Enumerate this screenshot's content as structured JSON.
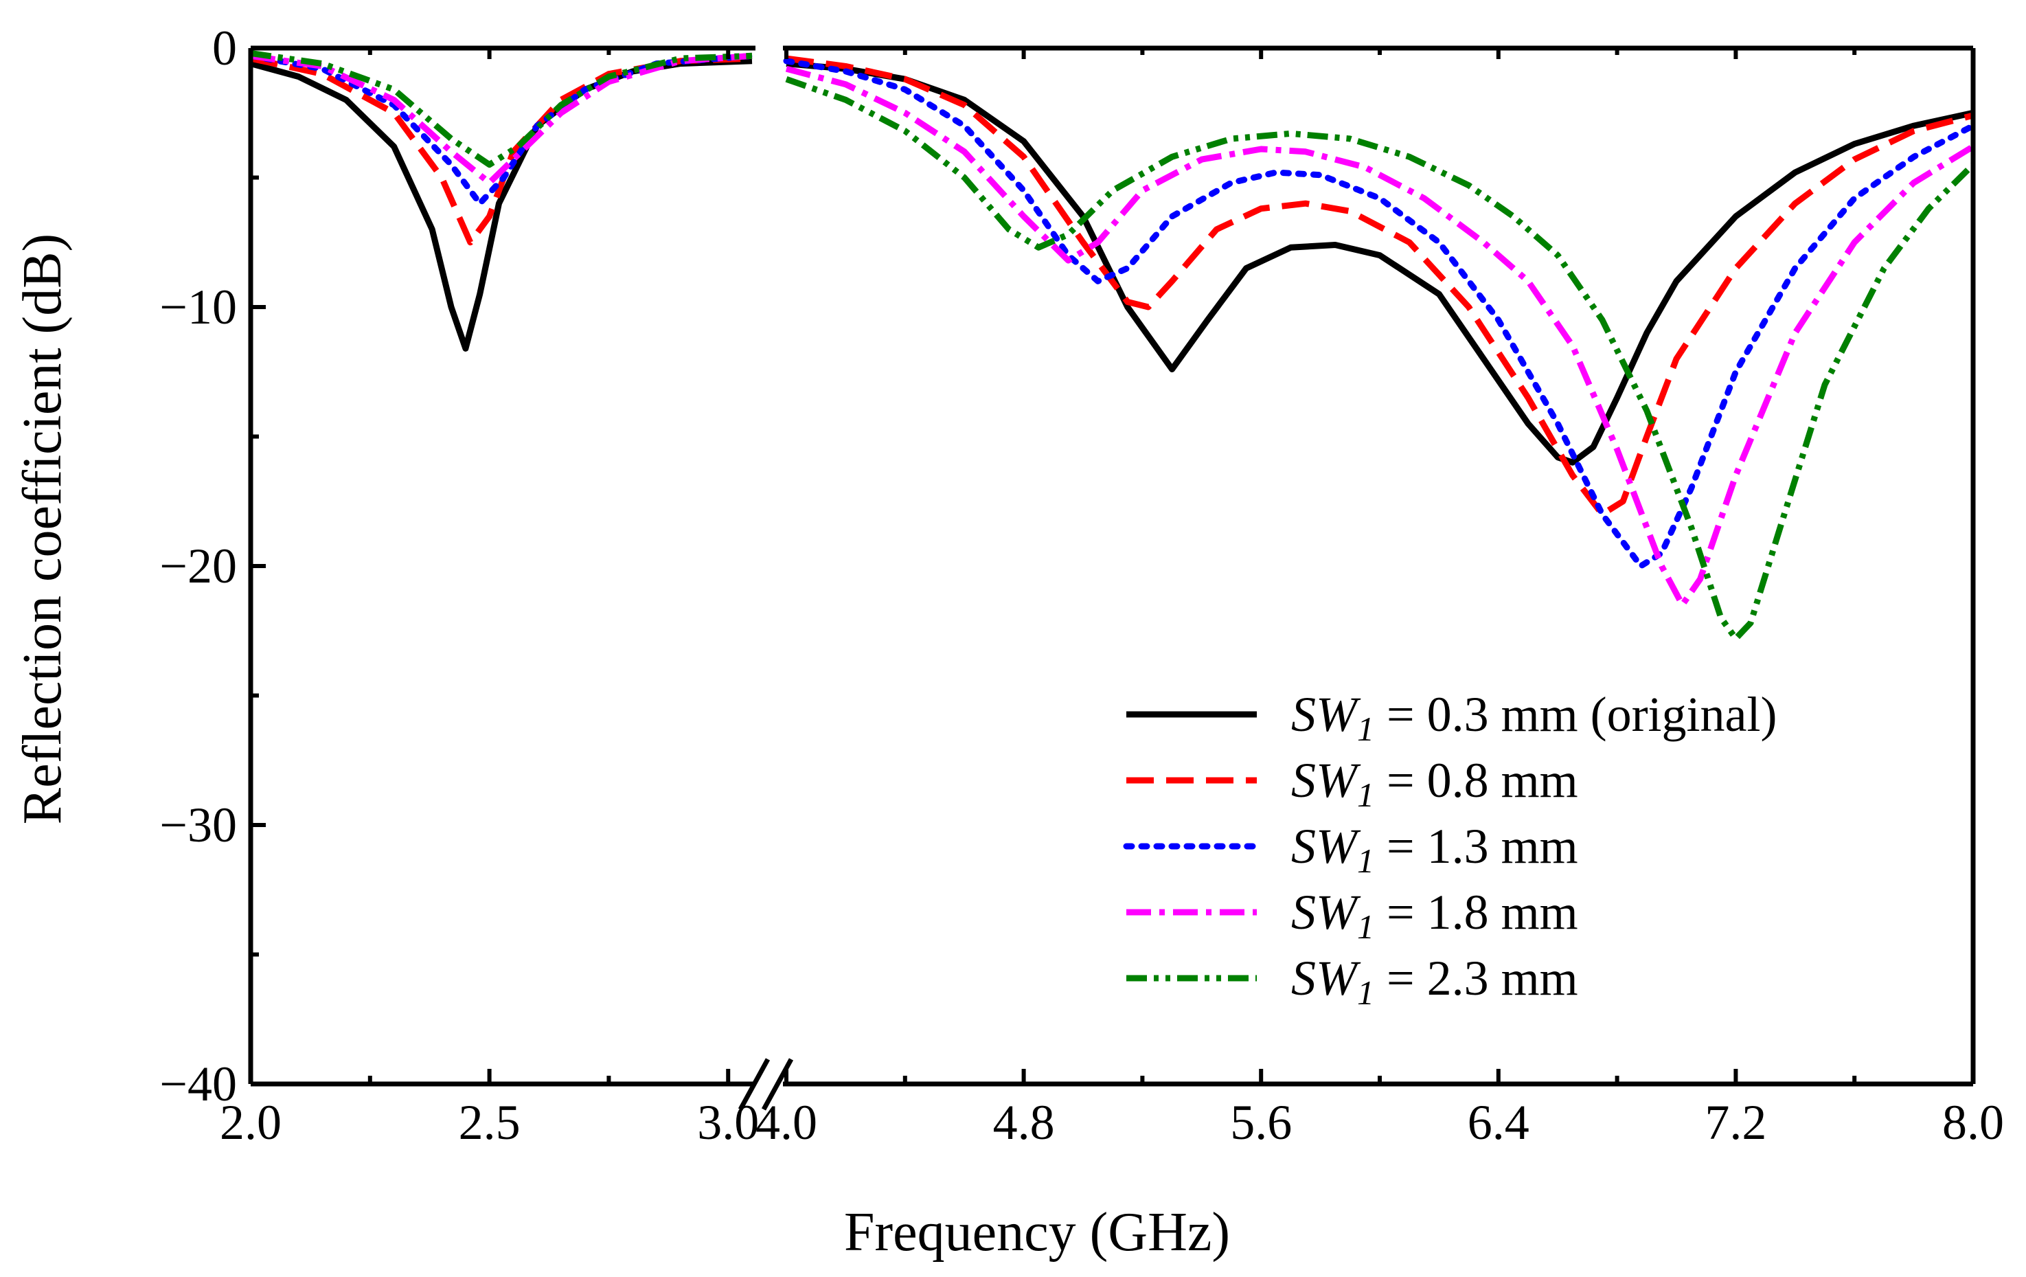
{
  "chart_data": {
    "type": "line",
    "title": "",
    "xlabel": "Frequency (GHz)",
    "ylabel": "Reflection coefficient (dB)",
    "ylim": [
      -40,
      0
    ],
    "yticks": [
      0,
      -10,
      -20,
      -30,
      -40
    ],
    "ytick_labels": [
      "0",
      "−10",
      "−20",
      "−30",
      "−40"
    ],
    "x_break": true,
    "x_segments": [
      {
        "range": [
          2.0,
          3.05
        ],
        "ticks": [
          2.0,
          2.5,
          3.0
        ],
        "tick_labels": [
          "2.0",
          "2.5",
          "3.0"
        ]
      },
      {
        "range": [
          4.0,
          8.0
        ],
        "ticks": [
          4.0,
          4.8,
          5.6,
          6.4,
          7.2,
          8.0
        ],
        "tick_labels": [
          "4.0",
          "4.8",
          "5.6",
          "6.4",
          "7.2",
          "8.0"
        ]
      }
    ],
    "legend_position": "bottom-right",
    "series": [
      {
        "name": "SW1 = 0.3 mm (original)",
        "legend": {
          "sym": "SW",
          "sub": "1",
          "rest": " = 0.3 mm (original)"
        },
        "color": "#000000",
        "dash": "solid",
        "segments": [
          [
            [
              2.0,
              -0.6
            ],
            [
              2.1,
              -1.1
            ],
            [
              2.2,
              -2.0
            ],
            [
              2.3,
              -3.8
            ],
            [
              2.38,
              -7.0
            ],
            [
              2.42,
              -10.0
            ],
            [
              2.45,
              -11.6
            ],
            [
              2.48,
              -9.5
            ],
            [
              2.52,
              -6.0
            ],
            [
              2.6,
              -3.0
            ],
            [
              2.7,
              -1.6
            ],
            [
              2.8,
              -0.9
            ],
            [
              2.9,
              -0.6
            ],
            [
              3.05,
              -0.5
            ]
          ],
          [
            [
              4.0,
              -0.6
            ],
            [
              4.2,
              -0.8
            ],
            [
              4.4,
              -1.2
            ],
            [
              4.6,
              -2.0
            ],
            [
              4.8,
              -3.6
            ],
            [
              5.0,
              -6.5
            ],
            [
              5.15,
              -10.0
            ],
            [
              5.3,
              -12.4
            ],
            [
              5.42,
              -10.5
            ],
            [
              5.55,
              -8.5
            ],
            [
              5.7,
              -7.7
            ],
            [
              5.85,
              -7.6
            ],
            [
              6.0,
              -8.0
            ],
            [
              6.2,
              -9.5
            ],
            [
              6.35,
              -12.0
            ],
            [
              6.5,
              -14.5
            ],
            [
              6.6,
              -15.8
            ],
            [
              6.65,
              -16.0
            ],
            [
              6.72,
              -15.4
            ],
            [
              6.8,
              -13.5
            ],
            [
              6.9,
              -11.0
            ],
            [
              7.0,
              -9.0
            ],
            [
              7.2,
              -6.5
            ],
            [
              7.4,
              -4.8
            ],
            [
              7.6,
              -3.7
            ],
            [
              7.8,
              -3.0
            ],
            [
              8.0,
              -2.5
            ]
          ]
        ]
      },
      {
        "name": "SW1 = 0.8 mm",
        "legend": {
          "sym": "SW",
          "sub": "1",
          "rest": " = 0.8 mm"
        },
        "color": "#ff0000",
        "dash": "dashed",
        "segments": [
          [
            [
              2.0,
              -0.4
            ],
            [
              2.15,
              -1.0
            ],
            [
              2.3,
              -2.5
            ],
            [
              2.4,
              -5.0
            ],
            [
              2.46,
              -7.5
            ],
            [
              2.5,
              -6.5
            ],
            [
              2.55,
              -4.0
            ],
            [
              2.65,
              -2.0
            ],
            [
              2.75,
              -1.0
            ],
            [
              2.9,
              -0.5
            ],
            [
              3.05,
              -0.4
            ]
          ],
          [
            [
              4.0,
              -0.4
            ],
            [
              4.2,
              -0.7
            ],
            [
              4.4,
              -1.2
            ],
            [
              4.6,
              -2.2
            ],
            [
              4.8,
              -4.2
            ],
            [
              5.0,
              -7.5
            ],
            [
              5.15,
              -9.8
            ],
            [
              5.22,
              -10.0
            ],
            [
              5.3,
              -9.0
            ],
            [
              5.45,
              -7.0
            ],
            [
              5.6,
              -6.2
            ],
            [
              5.75,
              -6.0
            ],
            [
              5.9,
              -6.3
            ],
            [
              6.1,
              -7.5
            ],
            [
              6.3,
              -10.0
            ],
            [
              6.5,
              -13.5
            ],
            [
              6.65,
              -16.5
            ],
            [
              6.75,
              -18.0
            ],
            [
              6.82,
              -17.5
            ],
            [
              6.9,
              -15.0
            ],
            [
              7.0,
              -12.0
            ],
            [
              7.2,
              -8.5
            ],
            [
              7.4,
              -6.0
            ],
            [
              7.6,
              -4.3
            ],
            [
              7.8,
              -3.2
            ],
            [
              8.0,
              -2.6
            ]
          ]
        ]
      },
      {
        "name": "SW1 = 1.3 mm",
        "legend": {
          "sym": "SW",
          "sub": "1",
          "rest": " = 1.3 mm"
        },
        "color": "#0000ff",
        "dash": "dotted",
        "segments": [
          [
            [
              2.0,
              -0.3
            ],
            [
              2.15,
              -0.8
            ],
            [
              2.3,
              -2.2
            ],
            [
              2.42,
              -4.5
            ],
            [
              2.48,
              -6.0
            ],
            [
              2.53,
              -5.0
            ],
            [
              2.6,
              -3.0
            ],
            [
              2.7,
              -1.6
            ],
            [
              2.85,
              -0.6
            ],
            [
              3.05,
              -0.3
            ]
          ],
          [
            [
              4.0,
              -0.5
            ],
            [
              4.2,
              -0.9
            ],
            [
              4.4,
              -1.6
            ],
            [
              4.6,
              -3.0
            ],
            [
              4.8,
              -5.5
            ],
            [
              4.95,
              -8.0
            ],
            [
              5.05,
              -9.0
            ],
            [
              5.15,
              -8.5
            ],
            [
              5.3,
              -6.5
            ],
            [
              5.5,
              -5.2
            ],
            [
              5.65,
              -4.8
            ],
            [
              5.8,
              -4.9
            ],
            [
              6.0,
              -5.8
            ],
            [
              6.2,
              -7.5
            ],
            [
              6.4,
              -10.5
            ],
            [
              6.6,
              -14.5
            ],
            [
              6.75,
              -18.0
            ],
            [
              6.88,
              -20.0
            ],
            [
              6.95,
              -19.5
            ],
            [
              7.05,
              -17.0
            ],
            [
              7.2,
              -12.5
            ],
            [
              7.4,
              -8.5
            ],
            [
              7.6,
              -5.8
            ],
            [
              7.8,
              -4.2
            ],
            [
              8.0,
              -3.0
            ]
          ]
        ]
      },
      {
        "name": "SW1 = 1.8 mm",
        "legend": {
          "sym": "SW",
          "sub": "1",
          "rest": " = 1.8 mm"
        },
        "color": "#ff00ff",
        "dash": "dash-dot",
        "segments": [
          [
            [
              2.0,
              -0.3
            ],
            [
              2.15,
              -0.7
            ],
            [
              2.3,
              -2.0
            ],
            [
              2.42,
              -4.0
            ],
            [
              2.5,
              -5.2
            ],
            [
              2.55,
              -4.3
            ],
            [
              2.65,
              -2.5
            ],
            [
              2.75,
              -1.3
            ],
            [
              2.9,
              -0.5
            ],
            [
              3.05,
              -0.3
            ]
          ],
          [
            [
              4.0,
              -0.8
            ],
            [
              4.2,
              -1.4
            ],
            [
              4.4,
              -2.5
            ],
            [
              4.6,
              -4.0
            ],
            [
              4.8,
              -6.5
            ],
            [
              4.95,
              -8.2
            ],
            [
              5.05,
              -7.5
            ],
            [
              5.2,
              -5.5
            ],
            [
              5.4,
              -4.3
            ],
            [
              5.6,
              -3.9
            ],
            [
              5.75,
              -4.0
            ],
            [
              5.95,
              -4.6
            ],
            [
              6.15,
              -5.8
            ],
            [
              6.35,
              -7.5
            ],
            [
              6.5,
              -9.0
            ],
            [
              6.65,
              -11.5
            ],
            [
              6.8,
              -15.5
            ],
            [
              6.95,
              -20.0
            ],
            [
              7.02,
              -21.5
            ],
            [
              7.08,
              -20.5
            ],
            [
              7.2,
              -16.5
            ],
            [
              7.4,
              -11.0
            ],
            [
              7.6,
              -7.5
            ],
            [
              7.8,
              -5.2
            ],
            [
              8.0,
              -3.8
            ]
          ]
        ]
      },
      {
        "name": "SW1 = 2.3 mm",
        "legend": {
          "sym": "SW",
          "sub": "1",
          "rest": " = 2.3 mm"
        },
        "color": "#008000",
        "dash": "dash-dot-dot",
        "segments": [
          [
            [
              2.0,
              -0.2
            ],
            [
              2.15,
              -0.6
            ],
            [
              2.3,
              -1.6
            ],
            [
              2.42,
              -3.5
            ],
            [
              2.5,
              -4.5
            ],
            [
              2.56,
              -3.8
            ],
            [
              2.65,
              -2.2
            ],
            [
              2.75,
              -1.1
            ],
            [
              2.9,
              -0.4
            ],
            [
              3.05,
              -0.3
            ]
          ],
          [
            [
              4.0,
              -1.2
            ],
            [
              4.2,
              -2.0
            ],
            [
              4.4,
              -3.2
            ],
            [
              4.6,
              -5.0
            ],
            [
              4.75,
              -7.0
            ],
            [
              4.85,
              -7.7
            ],
            [
              4.95,
              -7.2
            ],
            [
              5.1,
              -5.5
            ],
            [
              5.3,
              -4.2
            ],
            [
              5.5,
              -3.5
            ],
            [
              5.7,
              -3.3
            ],
            [
              5.9,
              -3.5
            ],
            [
              6.1,
              -4.2
            ],
            [
              6.3,
              -5.3
            ],
            [
              6.45,
              -6.5
            ],
            [
              6.6,
              -8.0
            ],
            [
              6.75,
              -10.5
            ],
            [
              6.9,
              -14.0
            ],
            [
              7.05,
              -18.5
            ],
            [
              7.15,
              -22.0
            ],
            [
              7.2,
              -22.8
            ],
            [
              7.25,
              -22.2
            ],
            [
              7.35,
              -18.5
            ],
            [
              7.5,
              -13.0
            ],
            [
              7.7,
              -8.5
            ],
            [
              7.85,
              -6.2
            ],
            [
              8.0,
              -4.5
            ]
          ]
        ]
      }
    ]
  }
}
